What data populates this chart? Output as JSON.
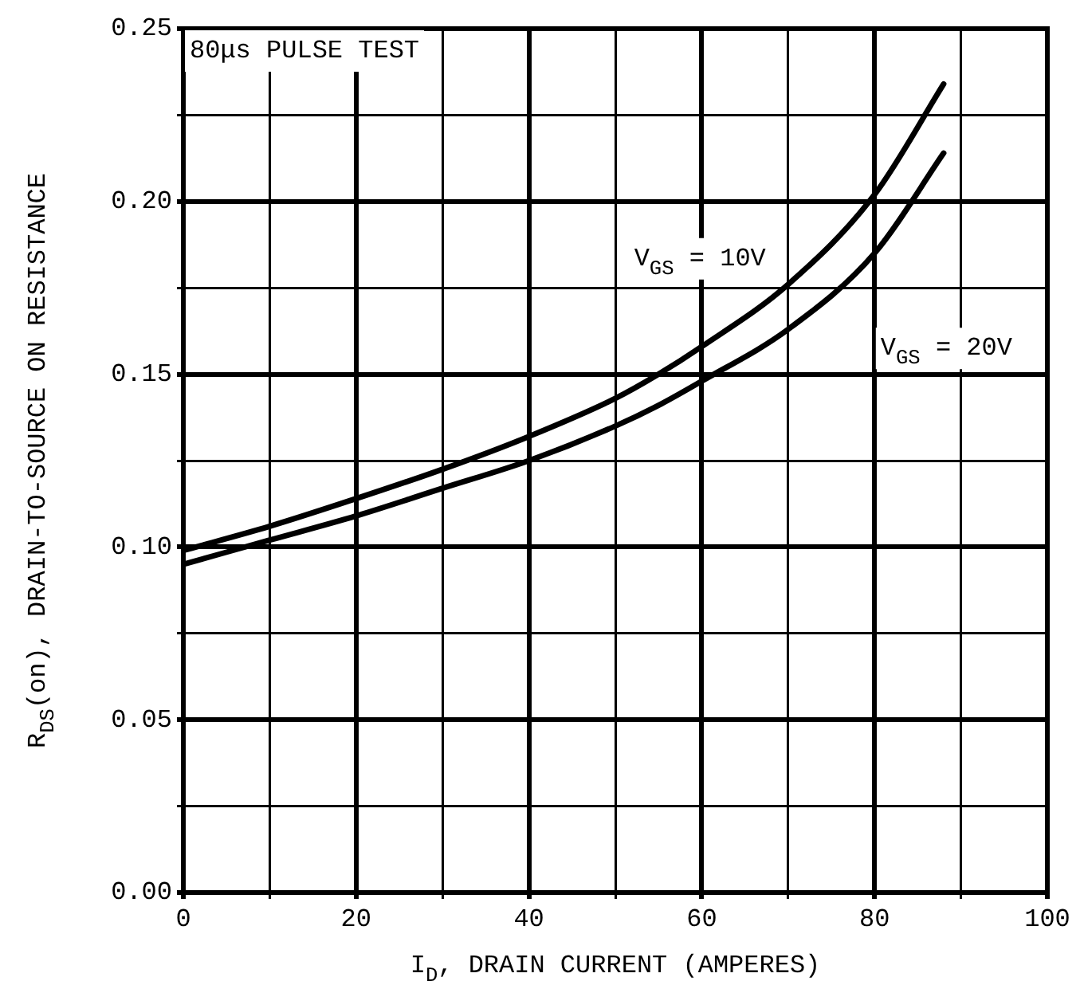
{
  "chart_data": {
    "type": "line",
    "xlabel": "I$_{D}$, DRAIN CURRENT (AMPERES)",
    "ylabel": "R$_{DS}$(on), DRAIN-TO-SOURCE ON RESISTANCE",
    "x": [
      0,
      10,
      20,
      30,
      40,
      50,
      55,
      60,
      70,
      80,
      88
    ],
    "series": [
      {
        "name": "V$_{GS}$ = 10V",
        "color": "#000000",
        "values": [
          0.099,
          0.106,
          0.114,
          0.1225,
          0.132,
          0.143,
          0.15,
          0.158,
          0.176,
          0.202,
          0.234
        ]
      },
      {
        "name": "V$_{GS}$ = 20V",
        "color": "#000000",
        "values": [
          0.095,
          0.102,
          0.109,
          0.117,
          0.125,
          0.135,
          0.141,
          0.148,
          0.163,
          0.185,
          0.214
        ]
      }
    ],
    "xlim": [
      0,
      100
    ],
    "xticks": [
      0,
      {
        "value": 10,
        "label": null
      },
      20,
      {
        "value": 30,
        "label": null
      },
      40,
      {
        "value": 50,
        "label": null
      },
      60,
      {
        "value": 70,
        "label": null
      },
      80,
      {
        "value": 90,
        "label": null
      },
      100
    ],
    "ylim": [
      0,
      0.25
    ],
    "yticks": [
      "0.00",
      {
        "value": 0.025,
        "label": null
      },
      {
        "value": 0.05,
        "label": "0.05"
      },
      {
        "value": 0.075,
        "label": null
      },
      {
        "value": 0.1,
        "label": "0.10"
      },
      {
        "value": 0.125,
        "label": null
      },
      {
        "value": 0.15,
        "label": "0.15"
      },
      {
        "value": 0.175,
        "label": null
      },
      {
        "value": 0.2,
        "label": "0.20"
      },
      {
        "value": 0.225,
        "label": null
      },
      {
        "value": 0.25,
        "label": "0.25"
      }
    ],
    "grid": true,
    "legend": false,
    "marker": "none",
    "line_style": "solid",
    "annotations": [
      "80μs PULSE TEST"
    ]
  }
}
